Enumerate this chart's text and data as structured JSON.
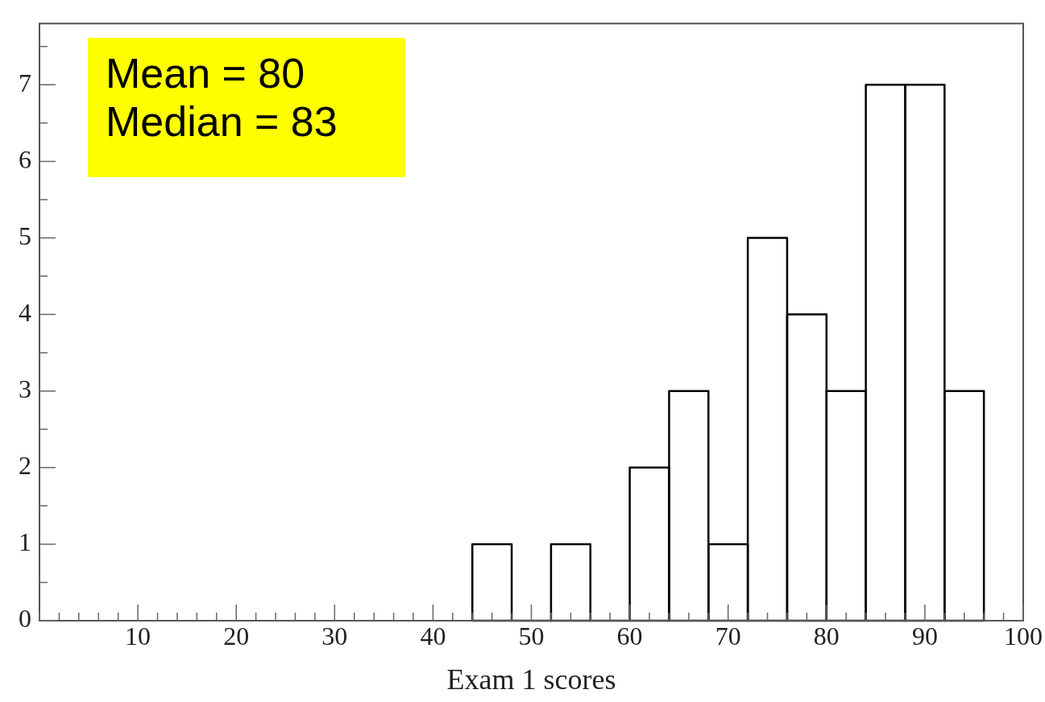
{
  "chart_data": {
    "type": "histogram",
    "xlabel": "Exam 1 scores",
    "bins": [
      44,
      48,
      52,
      56,
      60,
      64,
      68,
      72,
      76,
      80,
      84,
      88,
      92,
      96
    ],
    "values": [
      1,
      0,
      1,
      0,
      2,
      3,
      1,
      5,
      4,
      3,
      7,
      7,
      3
    ],
    "color": "#000000",
    "xlim": [
      0,
      100
    ],
    "xticks": [
      10,
      20,
      30,
      40,
      50,
      60,
      70,
      80,
      90,
      100
    ],
    "ylim": [
      0,
      7.8
    ],
    "yticks": [
      0,
      1,
      2,
      3,
      4,
      5,
      6,
      7
    ],
    "grid": false,
    "legend": false,
    "annotations": [
      "Mean = 80",
      "Median = 83"
    ]
  }
}
